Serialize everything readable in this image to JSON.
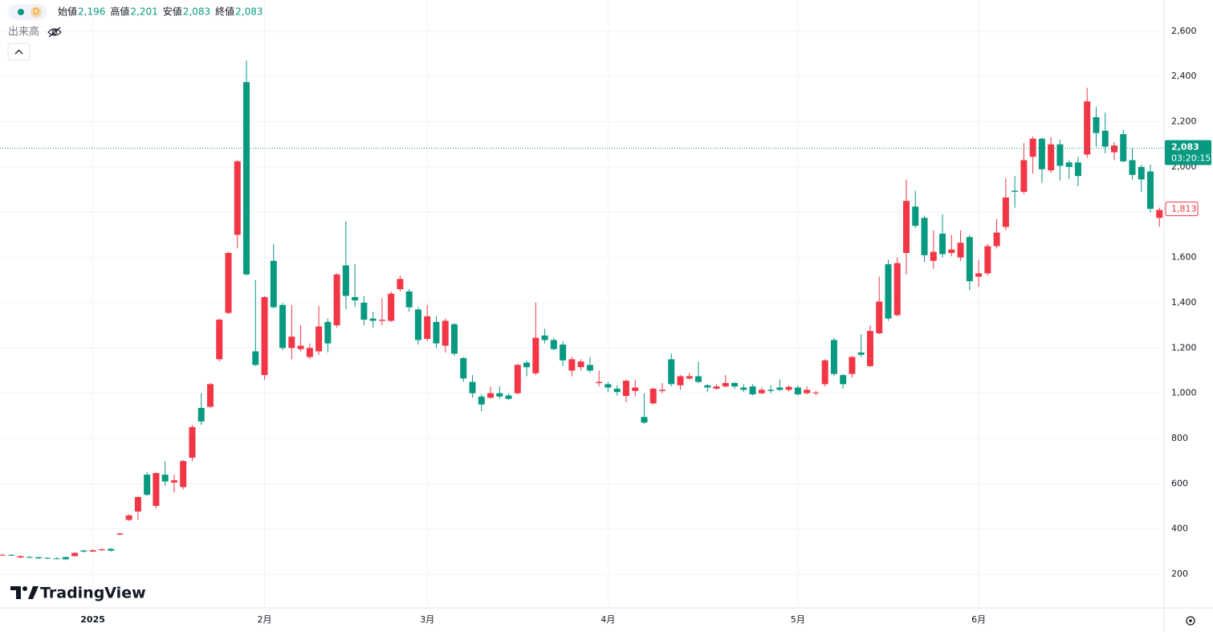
{
  "chart_data": {
    "type": "candlestick",
    "categories": [
      null,
      null,
      null,
      null,
      null,
      null,
      null,
      null,
      null,
      null,
      "2025",
      null,
      null,
      null,
      null,
      null,
      null,
      null,
      null,
      null,
      null,
      null,
      null,
      null,
      null,
      null,
      null,
      null,
      null,
      "2月",
      null,
      null,
      null,
      null,
      null,
      null,
      null,
      null,
      null,
      null,
      null,
      null,
      null,
      null,
      null,
      null,
      null,
      "3月",
      null,
      null,
      null,
      null,
      null,
      null,
      null,
      null,
      null,
      null,
      null,
      null,
      null,
      null,
      null,
      null,
      null,
      null,
      null,
      "4月",
      null,
      null,
      null,
      null,
      null,
      null,
      null,
      null,
      null,
      null,
      null,
      null,
      null,
      null,
      null,
      null,
      null,
      null,
      null,
      null,
      "5月",
      null,
      null,
      null,
      null,
      null,
      null,
      null,
      null,
      null,
      null,
      null,
      null,
      null,
      null,
      null,
      null,
      null,
      null,
      null,
      "6月",
      null,
      null,
      null,
      null,
      null,
      null,
      null,
      null,
      null,
      null,
      null,
      null,
      null,
      null,
      null,
      null,
      null,
      null,
      null,
      null
    ],
    "open": [
      285,
      286,
      274,
      276,
      275,
      272,
      270,
      276,
      280,
      305,
      300,
      306,
      312,
      375,
      440,
      477,
      640,
      502,
      640,
      605,
      585,
      715,
      935,
      940,
      1150,
      1355,
      1700,
      2375,
      1185,
      1080,
      1585,
      1390,
      1200,
      1195,
      1160,
      1185,
      1315,
      1300,
      1565,
      1425,
      1400,
      1330,
      1320,
      1320,
      1460,
      1450,
      1370,
      1240,
      1315,
      1210,
      1305,
      1155,
      1050,
      985,
      980,
      1000,
      990,
      1000,
      1135,
      1088,
      1255,
      1235,
      1215,
      1100,
      1115,
      1125,
      1045,
      1040,
      1020,
      988,
      1010,
      895,
      955,
      1010,
      1150,
      1035,
      1065,
      1075,
      1035,
      1020,
      1030,
      1045,
      1025,
      1030,
      1000,
      1015,
      1025,
      1015,
      1025,
      1000,
      1000,
      1040,
      1235,
      1080,
      1085,
      1180,
      1120,
      1265,
      1570,
      1345,
      1620,
      1825,
      1775,
      1585,
      1705,
      1620,
      1600,
      1690,
      1515,
      1530,
      1650,
      1735,
      1895,
      1890,
      2045,
      2125,
      1985,
      2100,
      2020,
      2020,
      2055,
      2220,
      2160,
      2065,
      2145,
      2030,
      2000,
      1980,
      1775
    ],
    "high": [
      290,
      288,
      282,
      280,
      278,
      275,
      274,
      278,
      298,
      308,
      310,
      315,
      315,
      382,
      465,
      545,
      650,
      650,
      700,
      640,
      705,
      860,
      1000,
      1045,
      1330,
      1625,
      2030,
      2470,
      1500,
      1430,
      1660,
      1400,
      1390,
      1300,
      1220,
      1385,
      1330,
      1530,
      1760,
      1570,
      1430,
      1360,
      1420,
      1450,
      1520,
      1460,
      1380,
      1390,
      1340,
      1330,
      1310,
      1160,
      1080,
      995,
      1030,
      1030,
      1000,
      1130,
      1145,
      1400,
      1285,
      1245,
      1230,
      1160,
      1150,
      1160,
      1100,
      1050,
      1035,
      1060,
      1060,
      1000,
      1025,
      1045,
      1175,
      1080,
      1090,
      1140,
      1040,
      1040,
      1080,
      1050,
      1040,
      1040,
      1025,
      1035,
      1060,
      1035,
      1035,
      1030,
      1010,
      1150,
      1245,
      1085,
      1165,
      1260,
      1300,
      1515,
      1590,
      1600,
      1945,
      1895,
      1785,
      1720,
      1790,
      1700,
      1720,
      1700,
      1590,
      1660,
      1770,
      1950,
      1960,
      2105,
      2135,
      2130,
      2130,
      2120,
      2030,
      2045,
      2350,
      2265,
      2240,
      2110,
      2165,
      2085,
      2010,
      2010,
      1820
    ],
    "low": [
      282,
      282,
      270,
      272,
      268,
      268,
      266,
      262,
      278,
      296,
      298,
      302,
      300,
      372,
      435,
      440,
      545,
      490,
      590,
      560,
      575,
      700,
      860,
      935,
      1140,
      1350,
      1640,
      1520,
      1120,
      1060,
      1375,
      1190,
      1150,
      1185,
      1150,
      1170,
      1180,
      1290,
      1370,
      1380,
      1300,
      1290,
      1300,
      1315,
      1450,
      1360,
      1215,
      1230,
      1200,
      1180,
      1165,
      1050,
      980,
      920,
      975,
      975,
      970,
      995,
      1075,
      1080,
      1220,
      1190,
      1120,
      1075,
      1100,
      1090,
      1030,
      1005,
      990,
      960,
      985,
      865,
      950,
      1000,
      1030,
      1015,
      1060,
      1045,
      1005,
      1015,
      1025,
      1020,
      1005,
      990,
      995,
      1000,
      1010,
      1005,
      990,
      995,
      990,
      1030,
      1075,
      1020,
      1070,
      1160,
      1115,
      1260,
      1320,
      1340,
      1525,
      1730,
      1580,
      1550,
      1600,
      1605,
      1585,
      1455,
      1470,
      1520,
      1640,
      1720,
      1820,
      1880,
      1970,
      1930,
      1975,
      1940,
      1945,
      1915,
      2040,
      2090,
      2060,
      2030,
      2020,
      1945,
      1890,
      1800,
      1735
    ],
    "close": [
      286,
      284,
      280,
      275,
      270,
      271,
      268,
      266,
      294,
      300,
      306,
      310,
      304,
      380,
      460,
      541,
      551,
      647,
      610,
      615,
      700,
      850,
      875,
      1040,
      1325,
      1620,
      2025,
      1525,
      1125,
      1425,
      1380,
      1200,
      1250,
      1210,
      1200,
      1295,
      1220,
      1525,
      1430,
      1410,
      1325,
      1320,
      1325,
      1440,
      1505,
      1380,
      1235,
      1340,
      1220,
      1320,
      1175,
      1065,
      1000,
      950,
      1000,
      985,
      975,
      1125,
      1115,
      1245,
      1235,
      1195,
      1145,
      1150,
      1140,
      1100,
      1050,
      1025,
      1005,
      1055,
      1025,
      870,
      1020,
      1015,
      1040,
      1075,
      1075,
      1050,
      1025,
      1030,
      1045,
      1030,
      1015,
      995,
      1015,
      1010,
      1015,
      1028,
      995,
      1015,
      1003,
      1145,
      1085,
      1040,
      1160,
      1170,
      1275,
      1405,
      1330,
      1575,
      1850,
      1740,
      1610,
      1625,
      1615,
      1635,
      1665,
      1495,
      1530,
      1650,
      1710,
      1865,
      1890,
      2030,
      2125,
      1990,
      2100,
      2005,
      2000,
      1960,
      2290,
      2150,
      2090,
      2095,
      2025,
      1965,
      1945,
      1815,
      1810
    ],
    "up_color": "#f23645",
    "down_color": "#089981",
    "ylim": [
      51,
      2738
    ],
    "yticks": [
      200,
      400,
      600,
      800,
      {
        "value": 1000,
        "label": "1,000"
      },
      {
        "value": 1200,
        "label": "1,200"
      },
      {
        "value": 1400,
        "label": "1,400"
      },
      {
        "value": 1600,
        "label": "1,600"
      },
      {
        "value": 1800,
        "label": "1,800"
      },
      {
        "value": 2000,
        "label": "2,000"
      },
      {
        "value": 2200,
        "label": "2,200"
      },
      {
        "value": 2400,
        "label": "2,400"
      },
      {
        "value": 2600,
        "label": "2,600"
      }
    ],
    "grid": true,
    "price_lines": [
      {
        "value": 2083,
        "label": "2,083",
        "countdown": "03:20:15",
        "color": "#089981"
      },
      {
        "value": 1813,
        "label": "1,813",
        "color": "#f23645"
      }
    ]
  },
  "legend": {
    "interval": "D",
    "items": [
      {
        "name": "始値",
        "value": "2,196"
      },
      {
        "name": "高値",
        "value": "2,201"
      },
      {
        "name": "安値",
        "value": "2,083"
      },
      {
        "name": "終値",
        "value": "2,083"
      }
    ],
    "volume": "出来高"
  },
  "brand": "TradingView"
}
